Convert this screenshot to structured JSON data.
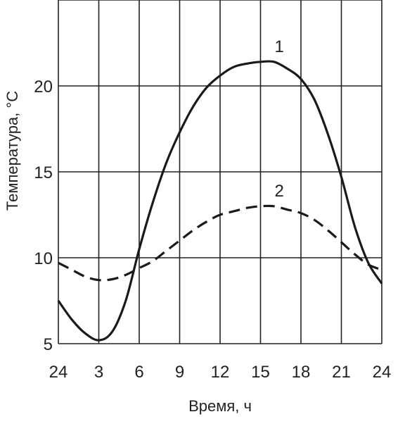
{
  "chart_data": {
    "type": "line",
    "title": "",
    "xlabel": "Время, ч",
    "ylabel": "Температура, °C",
    "x_ticks": [
      "24",
      "3",
      "6",
      "9",
      "12",
      "15",
      "18",
      "21",
      "24"
    ],
    "y_ticks": [
      "5",
      "10",
      "15",
      "20"
    ],
    "xlim": [
      0,
      24
    ],
    "ylim": [
      5,
      25
    ],
    "grid": true,
    "series": [
      {
        "name": "1",
        "style": "solid",
        "x": [
          0,
          1,
          2,
          3,
          4,
          5,
          6,
          7,
          8,
          9,
          10,
          11,
          12,
          13,
          14,
          15,
          16,
          17,
          18,
          19,
          20,
          21,
          22,
          23,
          24
        ],
        "y": [
          7.5,
          6.4,
          5.6,
          5.2,
          5.7,
          7.5,
          10.5,
          13.2,
          15.5,
          17.3,
          18.8,
          19.9,
          20.6,
          21.1,
          21.3,
          21.4,
          21.4,
          21.0,
          20.4,
          19.2,
          17.2,
          14.7,
          11.8,
          9.7,
          8.5
        ]
      },
      {
        "name": "2",
        "style": "dashed",
        "x": [
          0,
          1,
          2,
          3,
          4,
          5,
          6,
          7,
          8,
          9,
          10,
          11,
          12,
          13,
          14,
          15,
          16,
          17,
          18,
          19,
          20,
          21,
          22,
          23,
          24
        ],
        "y": [
          9.7,
          9.3,
          8.9,
          8.7,
          8.75,
          9.0,
          9.4,
          9.8,
          10.4,
          11.0,
          11.6,
          12.1,
          12.5,
          12.7,
          12.9,
          13.0,
          13.0,
          12.8,
          12.6,
          12.2,
          11.6,
          10.9,
          10.2,
          9.6,
          9.3
        ]
      }
    ]
  }
}
